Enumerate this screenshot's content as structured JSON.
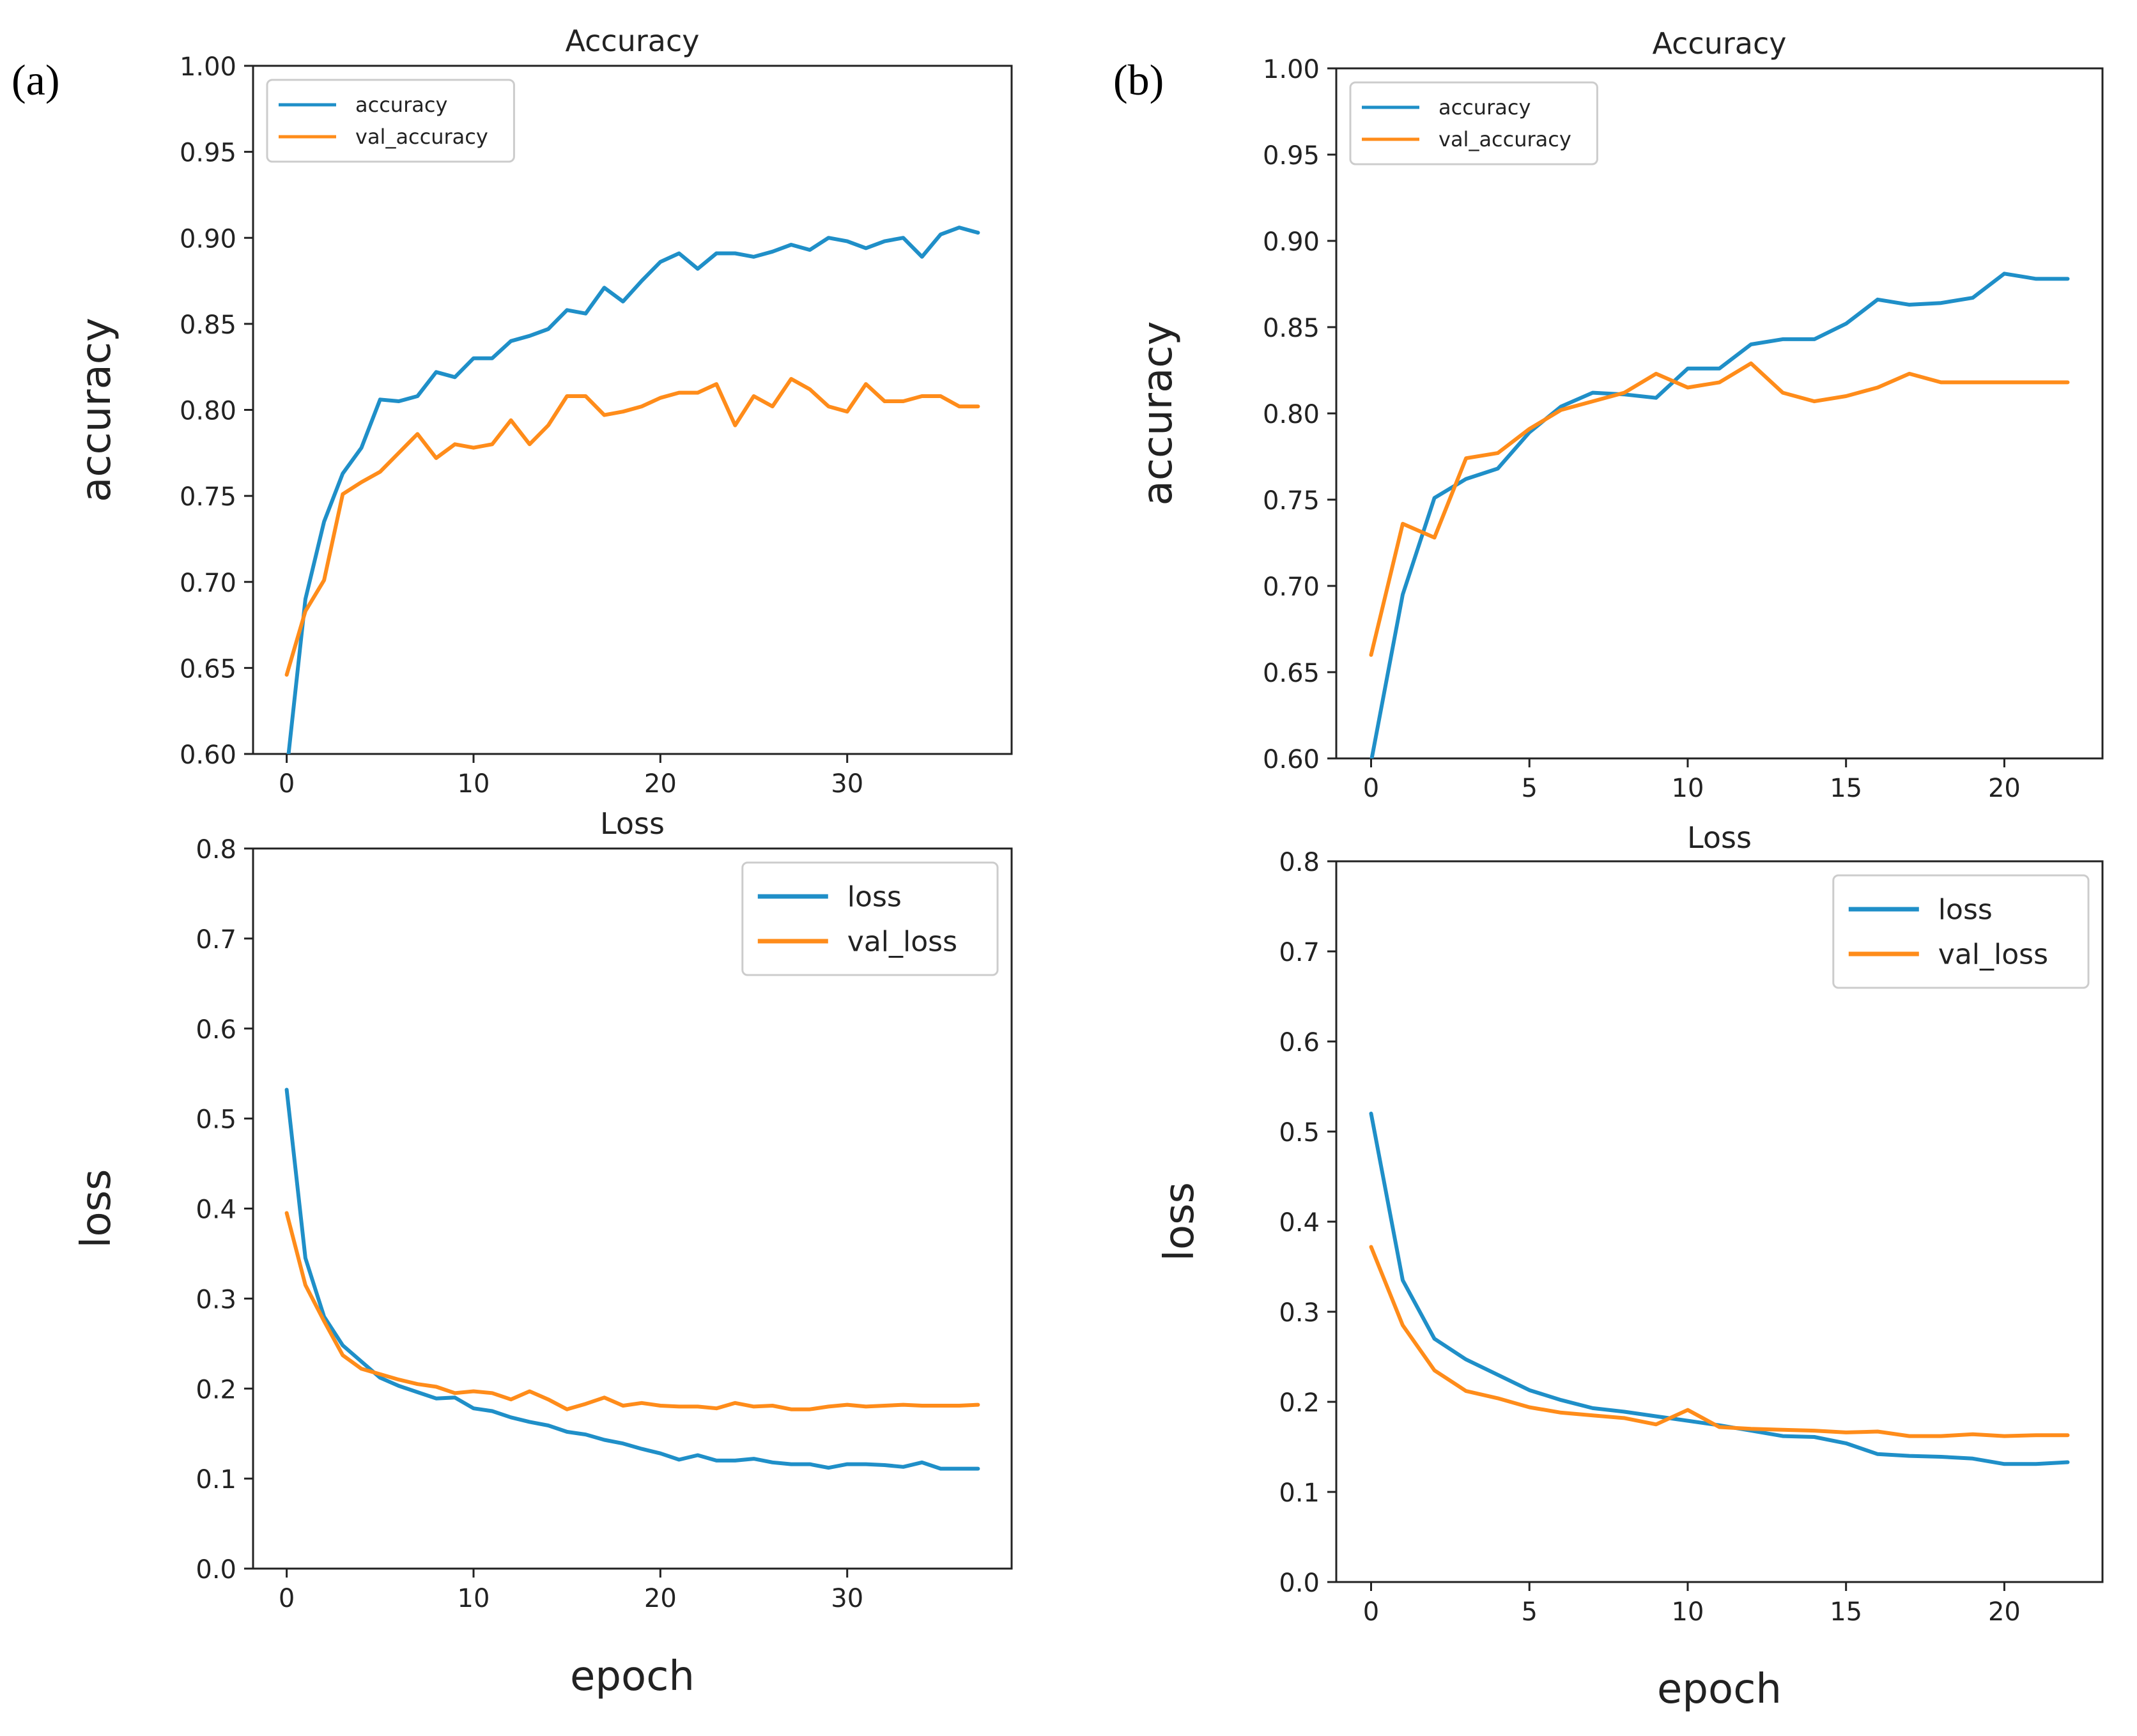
{
  "panels": [
    {
      "label": "(a)"
    },
    {
      "label": "(b)"
    }
  ],
  "colors": {
    "blue": "#1f8fc8",
    "orange": "#ff8c1a",
    "axis": "#222222",
    "legend_border": "#cccccc"
  },
  "chart_data": [
    {
      "id": "a-accuracy",
      "panel": "(a)",
      "type": "line",
      "title": "Accuracy",
      "xlabel": "",
      "ylabel": "accuracy",
      "xlim": [
        -1.8,
        38.8
      ],
      "ylim": [
        0.6,
        1.0
      ],
      "xticks": [
        0,
        10,
        20,
        30
      ],
      "yticks": [
        0.6,
        0.65,
        0.7,
        0.75,
        0.8,
        0.85,
        0.9,
        0.95,
        1.0
      ],
      "ytick_labels": [
        "0.60",
        "0.65",
        "0.70",
        "0.75",
        "0.80",
        "0.85",
        "0.90",
        "0.95",
        "1.00"
      ],
      "legend": "top-left",
      "legend_size": "small",
      "series": [
        {
          "name": "accuracy",
          "color": "blue",
          "x": [
            0,
            1,
            2,
            3,
            4,
            5,
            6,
            7,
            8,
            9,
            10,
            11,
            12,
            13,
            14,
            15,
            16,
            17,
            18,
            19,
            20,
            21,
            22,
            23,
            24,
            25,
            26,
            27,
            28,
            29,
            30,
            31,
            32,
            33,
            34,
            35,
            36,
            37
          ],
          "values": [
            0.59,
            0.69,
            0.735,
            0.763,
            0.778,
            0.806,
            0.805,
            0.808,
            0.822,
            0.819,
            0.83,
            0.83,
            0.84,
            0.843,
            0.847,
            0.858,
            0.856,
            0.871,
            0.863,
            0.875,
            0.886,
            0.891,
            0.882,
            0.891,
            0.891,
            0.889,
            0.892,
            0.896,
            0.893,
            0.9,
            0.898,
            0.894,
            0.898,
            0.9,
            0.889,
            0.902,
            0.906,
            0.903
          ]
        },
        {
          "name": "val_accuracy",
          "color": "orange",
          "x": [
            0,
            1,
            2,
            3,
            4,
            5,
            6,
            7,
            8,
            9,
            10,
            11,
            12,
            13,
            14,
            15,
            16,
            17,
            18,
            19,
            20,
            21,
            22,
            23,
            24,
            25,
            26,
            27,
            28,
            29,
            30,
            31,
            32,
            33,
            34,
            35,
            36,
            37
          ],
          "values": [
            0.646,
            0.683,
            0.701,
            0.751,
            0.758,
            0.764,
            0.775,
            0.786,
            0.772,
            0.78,
            0.778,
            0.78,
            0.794,
            0.78,
            0.791,
            0.808,
            0.808,
            0.797,
            0.799,
            0.802,
            0.807,
            0.81,
            0.81,
            0.815,
            0.791,
            0.808,
            0.802,
            0.818,
            0.812,
            0.802,
            0.799,
            0.815,
            0.805,
            0.805,
            0.808,
            0.808,
            0.802,
            0.802
          ]
        }
      ]
    },
    {
      "id": "a-loss",
      "panel": "(a)",
      "type": "line",
      "title": "Loss",
      "xlabel": "epoch",
      "ylabel": "loss",
      "xlim": [
        -1.8,
        38.8
      ],
      "ylim": [
        0.0,
        0.8
      ],
      "xticks": [
        0,
        10,
        20,
        30
      ],
      "yticks": [
        0.0,
        0.1,
        0.2,
        0.3,
        0.4,
        0.5,
        0.6,
        0.7,
        0.8
      ],
      "ytick_labels": [
        "0.0",
        "0.1",
        "0.2",
        "0.3",
        "0.4",
        "0.5",
        "0.6",
        "0.7",
        "0.8"
      ],
      "legend": "top-right",
      "legend_size": "large",
      "series": [
        {
          "name": "loss",
          "color": "blue",
          "x": [
            0,
            1,
            2,
            3,
            4,
            5,
            6,
            7,
            8,
            9,
            10,
            11,
            12,
            13,
            14,
            15,
            16,
            17,
            18,
            19,
            20,
            21,
            22,
            23,
            24,
            25,
            26,
            27,
            28,
            29,
            30,
            31,
            32,
            33,
            34,
            35,
            36,
            37
          ],
          "values": [
            0.532,
            0.345,
            0.28,
            0.248,
            0.23,
            0.212,
            0.203,
            0.196,
            0.189,
            0.19,
            0.178,
            0.175,
            0.168,
            0.163,
            0.159,
            0.152,
            0.149,
            0.143,
            0.139,
            0.133,
            0.128,
            0.121,
            0.126,
            0.12,
            0.12,
            0.122,
            0.118,
            0.116,
            0.116,
            0.112,
            0.116,
            0.116,
            0.115,
            0.113,
            0.118,
            0.111,
            0.111,
            0.111
          ]
        },
        {
          "name": "val_loss",
          "color": "orange",
          "x": [
            0,
            1,
            2,
            3,
            4,
            5,
            6,
            7,
            8,
            9,
            10,
            11,
            12,
            13,
            14,
            15,
            16,
            17,
            18,
            19,
            20,
            21,
            22,
            23,
            24,
            25,
            26,
            27,
            28,
            29,
            30,
            31,
            32,
            33,
            34,
            35,
            36,
            37
          ],
          "values": [
            0.395,
            0.315,
            0.275,
            0.237,
            0.222,
            0.216,
            0.21,
            0.205,
            0.202,
            0.195,
            0.197,
            0.195,
            0.188,
            0.197,
            0.188,
            0.177,
            0.183,
            0.19,
            0.181,
            0.184,
            0.181,
            0.18,
            0.18,
            0.178,
            0.184,
            0.18,
            0.181,
            0.177,
            0.177,
            0.18,
            0.182,
            0.18,
            0.181,
            0.182,
            0.181,
            0.181,
            0.181,
            0.182
          ]
        }
      ]
    },
    {
      "id": "b-accuracy",
      "panel": "(b)",
      "type": "line",
      "title": "Accuracy",
      "xlabel": "",
      "ylabel": "accuracy",
      "xlim": [
        -1.1,
        23.1
      ],
      "ylim": [
        0.6,
        1.0
      ],
      "xticks": [
        0,
        5,
        10,
        15,
        20
      ],
      "yticks": [
        0.6,
        0.65,
        0.7,
        0.75,
        0.8,
        0.85,
        0.9,
        0.95,
        1.0
      ],
      "ytick_labels": [
        "0.60",
        "0.65",
        "0.70",
        "0.75",
        "0.80",
        "0.85",
        "0.90",
        "0.95",
        "1.00"
      ],
      "legend": "top-left",
      "legend_size": "small",
      "series": [
        {
          "name": "accuracy",
          "color": "blue",
          "x": [
            0,
            1,
            2,
            3,
            4,
            5,
            6,
            7,
            8,
            9,
            10,
            11,
            12,
            13,
            14,
            15,
            16,
            17,
            18,
            19,
            20,
            21,
            22
          ],
          "values": [
            0.598,
            0.695,
            0.751,
            0.762,
            0.768,
            0.789,
            0.804,
            0.812,
            0.811,
            0.809,
            0.826,
            0.826,
            0.84,
            0.843,
            0.843,
            0.852,
            0.866,
            0.863,
            0.864,
            0.867,
            0.881,
            0.878,
            0.878
          ]
        },
        {
          "name": "val_accuracy",
          "color": "orange",
          "x": [
            0,
            1,
            2,
            3,
            4,
            5,
            6,
            7,
            8,
            9,
            10,
            11,
            12,
            13,
            14,
            15,
            16,
            17,
            18,
            19,
            20,
            21,
            22
          ],
          "values": [
            0.66,
            0.736,
            0.728,
            0.774,
            0.777,
            0.791,
            0.802,
            0.807,
            0.812,
            0.823,
            0.815,
            0.818,
            0.829,
            0.812,
            0.807,
            0.81,
            0.815,
            0.823,
            0.818,
            0.818,
            0.818,
            0.818,
            0.818
          ]
        }
      ]
    },
    {
      "id": "b-loss",
      "panel": "(b)",
      "type": "line",
      "title": "Loss",
      "xlabel": "epoch",
      "ylabel": "loss",
      "xlim": [
        -1.1,
        23.1
      ],
      "ylim": [
        0.0,
        0.8
      ],
      "xticks": [
        0,
        5,
        10,
        15,
        20
      ],
      "yticks": [
        0.0,
        0.1,
        0.2,
        0.3,
        0.4,
        0.5,
        0.6,
        0.7,
        0.8
      ],
      "ytick_labels": [
        "0.0",
        "0.1",
        "0.2",
        "0.3",
        "0.4",
        "0.5",
        "0.6",
        "0.7",
        "0.8"
      ],
      "legend": "top-right",
      "legend_size": "large",
      "series": [
        {
          "name": "loss",
          "color": "blue",
          "x": [
            0,
            1,
            2,
            3,
            4,
            5,
            6,
            7,
            8,
            9,
            10,
            11,
            12,
            13,
            14,
            15,
            16,
            17,
            18,
            19,
            20,
            21,
            22
          ],
          "values": [
            0.52,
            0.335,
            0.27,
            0.247,
            0.23,
            0.213,
            0.202,
            0.193,
            0.189,
            0.184,
            0.179,
            0.174,
            0.168,
            0.162,
            0.161,
            0.154,
            0.142,
            0.14,
            0.139,
            0.137,
            0.131,
            0.131,
            0.133
          ]
        },
        {
          "name": "val_loss",
          "color": "orange",
          "x": [
            0,
            1,
            2,
            3,
            4,
            5,
            6,
            7,
            8,
            9,
            10,
            11,
            12,
            13,
            14,
            15,
            16,
            17,
            18,
            19,
            20,
            21,
            22
          ],
          "values": [
            0.372,
            0.285,
            0.235,
            0.212,
            0.204,
            0.194,
            0.188,
            0.185,
            0.182,
            0.175,
            0.191,
            0.172,
            0.17,
            0.169,
            0.168,
            0.166,
            0.167,
            0.162,
            0.162,
            0.164,
            0.162,
            0.163,
            0.163
          ]
        }
      ]
    }
  ]
}
